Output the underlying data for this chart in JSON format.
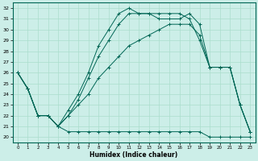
{
  "xlabel": "Humidex (Indice chaleur)",
  "bg_color": "#cceee8",
  "line_color": "#006655",
  "grid_color": "#aaddcc",
  "xlim": [
    -0.5,
    23.5
  ],
  "ylim": [
    19.5,
    32.5
  ],
  "xticks": [
    0,
    1,
    2,
    3,
    4,
    5,
    6,
    7,
    8,
    9,
    10,
    11,
    12,
    13,
    14,
    15,
    16,
    17,
    18,
    19,
    20,
    21,
    22,
    23
  ],
  "yticks": [
    20,
    21,
    22,
    23,
    24,
    25,
    26,
    27,
    28,
    29,
    30,
    31,
    32
  ],
  "line_flat": [
    26.0,
    24.5,
    22.0,
    22.0,
    21.0,
    20.5,
    20.5,
    20.5,
    20.5,
    20.5,
    20.5,
    20.5,
    20.5,
    20.5,
    20.5,
    20.5,
    20.5,
    20.5,
    20.5,
    20.0,
    20.0,
    20.0,
    20.0,
    20.0
  ],
  "line_lower": [
    26.0,
    24.5,
    22.0,
    22.0,
    21.0,
    22.0,
    23.0,
    24.0,
    25.5,
    26.5,
    27.5,
    28.5,
    29.0,
    29.5,
    30.0,
    30.5,
    30.5,
    30.5,
    29.5,
    26.5,
    26.5,
    26.5,
    23.0,
    20.5
  ],
  "line_mid": [
    26.0,
    24.5,
    22.0,
    22.0,
    21.0,
    22.0,
    23.5,
    25.5,
    27.5,
    29.0,
    30.5,
    31.5,
    31.5,
    31.5,
    31.0,
    31.0,
    31.0,
    31.5,
    30.5,
    26.5,
    26.5,
    26.5,
    23.0,
    20.5
  ],
  "line_upper": [
    26.0,
    24.5,
    22.0,
    22.0,
    21.0,
    22.5,
    24.0,
    26.0,
    28.5,
    30.0,
    31.5,
    32.0,
    31.5,
    31.5,
    31.5,
    31.5,
    31.5,
    31.0,
    29.0,
    26.5,
    26.5,
    26.5,
    23.0,
    20.5
  ]
}
